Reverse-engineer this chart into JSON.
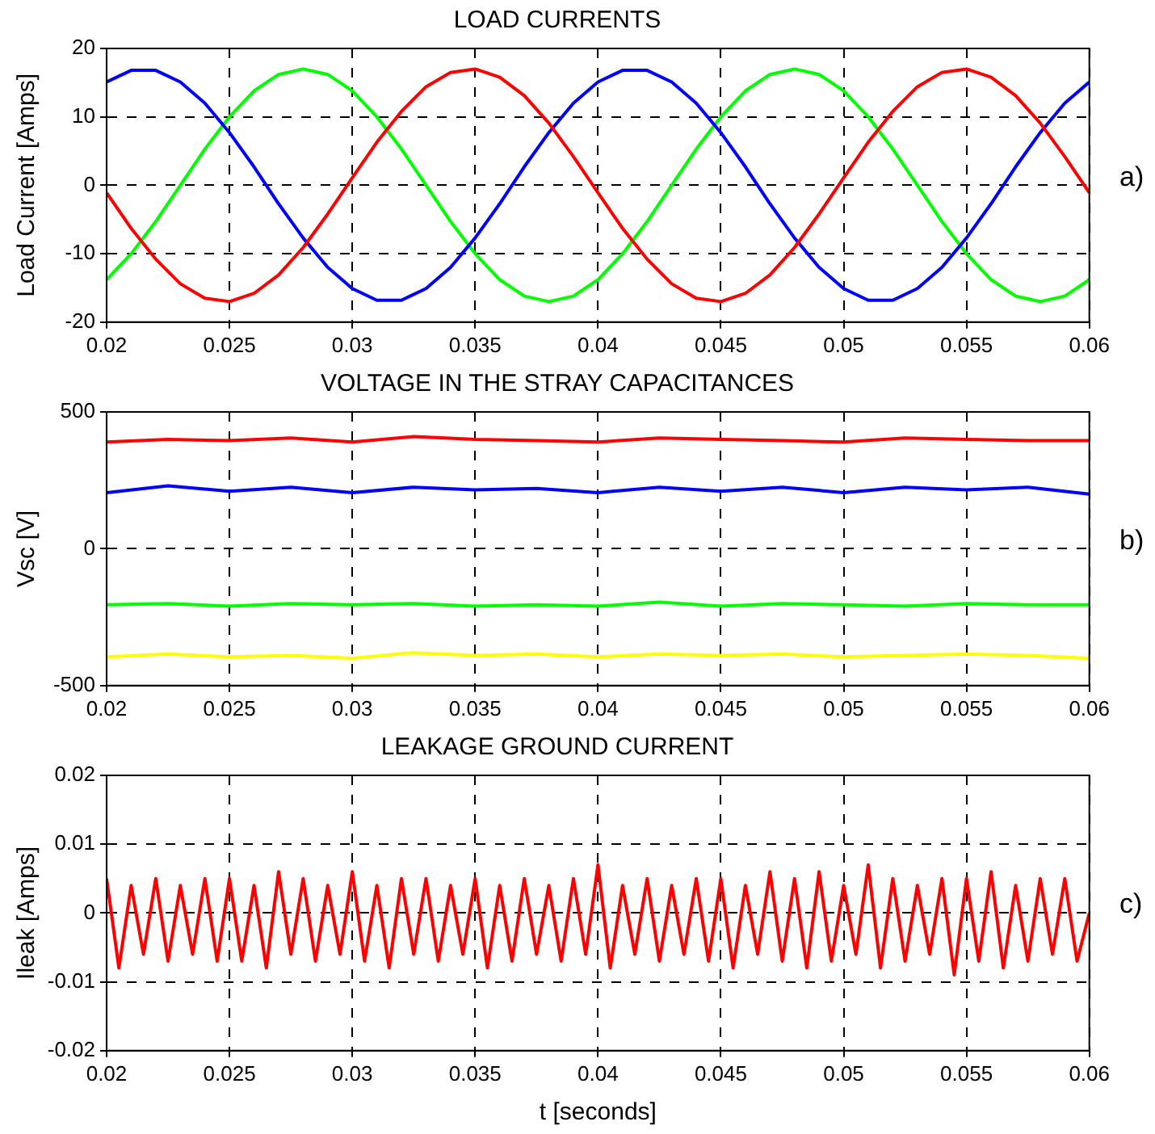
{
  "chart_data": [
    {
      "type": "line",
      "title": "LOAD CURRENTS",
      "ylabel": "Load Current [Amps]",
      "annotations": [
        "a)"
      ],
      "marker": "none",
      "grid": true,
      "x": [
        0.02,
        0.021,
        0.022,
        0.023,
        0.024,
        0.025,
        0.026,
        0.027,
        0.028,
        0.029,
        0.03,
        0.031,
        0.032,
        0.033,
        0.034,
        0.035,
        0.036,
        0.037,
        0.038,
        0.039,
        0.04,
        0.041,
        0.042,
        0.043,
        0.044,
        0.045,
        0.046,
        0.047,
        0.048,
        0.049,
        0.05,
        0.051,
        0.052,
        0.053,
        0.054,
        0.055,
        0.056,
        0.057,
        0.058,
        0.059,
        0.06
      ],
      "series": [
        {
          "color": "#ff0000",
          "values": [
            -1.1,
            -6.3,
            -10.8,
            -14.4,
            -16.5,
            -17.0,
            -15.8,
            -13.1,
            -9.1,
            -4.2,
            1.1,
            6.3,
            10.8,
            14.4,
            16.5,
            17.0,
            15.8,
            13.1,
            9.1,
            4.2,
            -1.1,
            -6.3,
            -10.8,
            -14.4,
            -16.5,
            -17.0,
            -15.8,
            -13.1,
            -9.1,
            -4.2,
            1.1,
            6.3,
            10.8,
            14.4,
            16.5,
            17.0,
            15.8,
            13.1,
            9.1,
            4.2,
            -1.1
          ]
        },
        {
          "color": "#0000ff",
          "values": [
            15.1,
            16.8,
            16.8,
            15.1,
            12.0,
            7.7,
            2.7,
            -2.7,
            -7.7,
            -12.0,
            -15.1,
            -16.8,
            -16.8,
            -15.1,
            -12.0,
            -7.7,
            -2.7,
            2.7,
            7.7,
            12.0,
            15.1,
            16.8,
            16.8,
            15.1,
            12.0,
            7.7,
            2.7,
            -2.7,
            -7.7,
            -12.0,
            -15.1,
            -16.8,
            -16.8,
            -15.1,
            -12.0,
            -7.7,
            -2.7,
            2.7,
            7.7,
            12.0,
            15.1
          ]
        },
        {
          "color": "#00ff00",
          "values": [
            -13.8,
            -10.0,
            -5.3,
            0,
            5.3,
            10.0,
            13.8,
            16.2,
            17.0,
            16.2,
            13.8,
            10.0,
            5.3,
            0,
            -5.3,
            -10.0,
            -13.8,
            -16.2,
            -17.0,
            -16.2,
            -13.8,
            -10.0,
            -5.3,
            0,
            5.3,
            10.0,
            13.8,
            16.2,
            17.0,
            16.2,
            13.8,
            10.0,
            5.3,
            0,
            -5.3,
            -10.0,
            -13.8,
            -16.2,
            -17.0,
            -16.2,
            -13.8
          ]
        }
      ],
      "xlim": [
        0.02,
        0.06
      ],
      "ylim": [
        -20,
        20
      ],
      "xticks": [
        0.02,
        0.025,
        0.03,
        0.035,
        0.04,
        0.045,
        0.05,
        0.055,
        0.06
      ],
      "yticks": [
        -20,
        -10,
        0,
        10,
        20
      ]
    },
    {
      "type": "line",
      "title": "VOLTAGE IN THE STRAY CAPACITANCES",
      "ylabel": "Vsc [V]",
      "annotations": [
        "b)"
      ],
      "marker": "none",
      "grid": true,
      "x": [
        0.02,
        0.0225,
        0.025,
        0.0275,
        0.03,
        0.0325,
        0.035,
        0.0375,
        0.04,
        0.0425,
        0.045,
        0.0475,
        0.05,
        0.0525,
        0.055,
        0.0575,
        0.06
      ],
      "series": [
        {
          "color": "#ff0000",
          "values": [
            390,
            400,
            395,
            405,
            390,
            410,
            400,
            395,
            390,
            405,
            400,
            395,
            390,
            405,
            400,
            395,
            395
          ]
        },
        {
          "color": "#0000ff",
          "values": [
            205,
            230,
            210,
            225,
            205,
            225,
            215,
            220,
            205,
            225,
            210,
            225,
            205,
            225,
            215,
            225,
            200
          ]
        },
        {
          "color": "#00ff00",
          "values": [
            -205,
            -200,
            -210,
            -200,
            -205,
            -200,
            -210,
            -205,
            -210,
            -195,
            -210,
            -200,
            -205,
            -210,
            -200,
            -205,
            -205
          ]
        },
        {
          "color": "#ffff00",
          "values": [
            -395,
            -385,
            -395,
            -390,
            -400,
            -380,
            -390,
            -385,
            -395,
            -385,
            -390,
            -385,
            -395,
            -390,
            -385,
            -390,
            -400
          ]
        }
      ],
      "xlim": [
        0.02,
        0.06
      ],
      "ylim": [
        -500,
        500
      ],
      "xticks": [
        0.02,
        0.025,
        0.03,
        0.035,
        0.04,
        0.045,
        0.05,
        0.055,
        0.06
      ],
      "yticks": [
        -500,
        0,
        500
      ]
    },
    {
      "type": "line",
      "title": "LEAKAGE GROUND CURRENT",
      "xlabel": "t [seconds]",
      "ylabel": "Ileak [Amps]",
      "annotations": [
        "c)"
      ],
      "marker": "none",
      "grid": true,
      "x": [
        0.02,
        0.0205,
        0.021,
        0.0215,
        0.022,
        0.0225,
        0.023,
        0.0235,
        0.024,
        0.0245,
        0.025,
        0.0255,
        0.026,
        0.0265,
        0.027,
        0.0275,
        0.028,
        0.0285,
        0.029,
        0.0295,
        0.03,
        0.0305,
        0.031,
        0.0315,
        0.032,
        0.0325,
        0.033,
        0.0335,
        0.034,
        0.0345,
        0.035,
        0.0355,
        0.036,
        0.0365,
        0.037,
        0.0375,
        0.038,
        0.0385,
        0.039,
        0.0395,
        0.04,
        0.0405,
        0.041,
        0.0415,
        0.042,
        0.0425,
        0.043,
        0.0435,
        0.044,
        0.0445,
        0.045,
        0.0455,
        0.046,
        0.0465,
        0.047,
        0.0475,
        0.048,
        0.0485,
        0.049,
        0.0495,
        0.05,
        0.0505,
        0.051,
        0.0515,
        0.052,
        0.0525,
        0.053,
        0.0535,
        0.054,
        0.0545,
        0.055,
        0.0555,
        0.056,
        0.0565,
        0.057,
        0.0575,
        0.058,
        0.0585,
        0.059,
        0.0595,
        0.06
      ],
      "series": [
        {
          "color": "#ff0000",
          "values": [
            0.005,
            -0.008,
            0.004,
            -0.006,
            0.005,
            -0.007,
            0.004,
            -0.006,
            0.005,
            -0.007,
            0.005,
            -0.007,
            0.004,
            -0.008,
            0.006,
            -0.006,
            0.005,
            -0.007,
            0.004,
            -0.006,
            0.006,
            -0.007,
            0.004,
            -0.008,
            0.005,
            -0.006,
            0.005,
            -0.007,
            0.004,
            -0.006,
            0.005,
            -0.008,
            0.004,
            -0.007,
            0.005,
            -0.006,
            0.004,
            -0.007,
            0.005,
            -0.006,
            0.007,
            -0.008,
            0.004,
            -0.006,
            0.005,
            -0.007,
            0.004,
            -0.006,
            0.005,
            -0.007,
            0.005,
            -0.008,
            0.004,
            -0.006,
            0.006,
            -0.007,
            0.005,
            -0.008,
            0.006,
            -0.007,
            0.004,
            -0.006,
            0.007,
            -0.008,
            0.005,
            -0.007,
            0.004,
            -0.006,
            0.005,
            -0.009,
            0.005,
            -0.007,
            0.006,
            -0.008,
            0.004,
            -0.007,
            0.005,
            -0.006,
            0.005,
            -0.007,
            0.0
          ]
        }
      ],
      "xlim": [
        0.02,
        0.06
      ],
      "ylim": [
        -0.02,
        0.02
      ],
      "xticks": [
        0.02,
        0.025,
        0.03,
        0.035,
        0.04,
        0.045,
        0.05,
        0.055,
        0.06
      ],
      "yticks": [
        -0.02,
        -0.01,
        0,
        0.01,
        0.02
      ]
    }
  ]
}
